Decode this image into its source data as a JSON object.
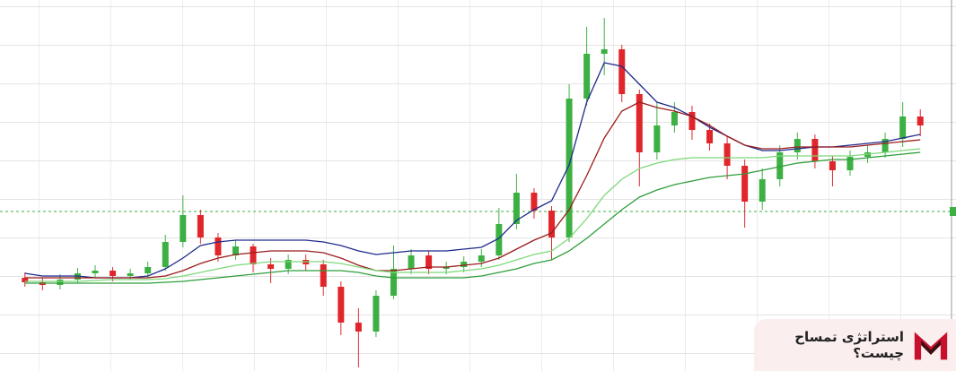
{
  "chart_data": {
    "type": "candlestick",
    "ylim": [
      0,
      414
    ],
    "up_color": "#3cb043",
    "down_color": "#e0262b",
    "open": [
      104,
      99,
      96,
      102,
      109,
      112,
      106,
      109,
      116,
      144,
      174,
      149,
      129,
      139,
      119,
      114,
      124,
      119,
      94,
      54,
      44,
      84,
      114,
      129,
      114,
      116,
      122,
      129,
      164,
      199,
      179,
      149,
      304,
      354,
      359,
      309,
      244,
      274,
      289,
      269,
      254,
      229,
      189,
      214,
      244,
      259,
      234,
      224,
      239,
      244,
      259,
      284
    ],
    "high": [
      110,
      104,
      108,
      115,
      118,
      116,
      114,
      122,
      152,
      196,
      180,
      154,
      146,
      142,
      126,
      130,
      130,
      124,
      100,
      70,
      90,
      140,
      136,
      134,
      122,
      128,
      136,
      182,
      220,
      204,
      184,
      320,
      384,
      394,
      364,
      314,
      300,
      300,
      296,
      276,
      262,
      236,
      226,
      252,
      266,
      264,
      240,
      246,
      252,
      266,
      300,
      292
    ],
    "low": [
      94,
      90,
      91,
      98,
      104,
      100,
      102,
      104,
      112,
      138,
      142,
      122,
      124,
      110,
      98,
      108,
      112,
      84,
      40,
      4,
      38,
      80,
      108,
      108,
      108,
      110,
      116,
      124,
      158,
      170,
      124,
      144,
      296,
      330,
      300,
      206,
      236,
      266,
      258,
      246,
      214,
      160,
      180,
      206,
      236,
      226,
      206,
      218,
      232,
      238,
      250,
      262
    ],
    "close": [
      99,
      96,
      102,
      109,
      112,
      106,
      109,
      116,
      144,
      174,
      149,
      129,
      139,
      119,
      114,
      124,
      119,
      94,
      54,
      44,
      84,
      114,
      129,
      114,
      116,
      122,
      129,
      164,
      199,
      179,
      149,
      304,
      354,
      359,
      309,
      244,
      274,
      289,
      269,
      254,
      229,
      189,
      214,
      244,
      259,
      234,
      224,
      239,
      244,
      259,
      284,
      274
    ],
    "lines": [
      {
        "color": "#1f2a8c",
        "values": [
          109,
          106,
          106,
          106,
          104,
          104,
          104,
          106,
          114,
          126,
          140,
          144,
          146,
          146,
          146,
          146,
          146,
          144,
          140,
          134,
          130,
          132,
          134,
          134,
          134,
          136,
          138,
          148,
          168,
          180,
          190,
          230,
          300,
          344,
          340,
          320,
          300,
          294,
          284,
          272,
          262,
          252,
          246,
          246,
          248,
          250,
          250,
          252,
          254,
          256,
          260,
          264
        ]
      },
      {
        "color": "#9b1c1c",
        "values": [
          104,
          104,
          104,
          104,
          104,
          104,
          104,
          104,
          106,
          112,
          120,
          126,
          130,
          132,
          134,
          134,
          134,
          132,
          126,
          118,
          112,
          112,
          114,
          116,
          116,
          118,
          120,
          126,
          136,
          146,
          154,
          180,
          218,
          260,
          290,
          300,
          294,
          290,
          284,
          274,
          262,
          252,
          248,
          248,
          250,
          250,
          250,
          250,
          252,
          254,
          256,
          258
        ]
      },
      {
        "color": "#7ed87a",
        "values": [
          100,
          100,
          100,
          100,
          101,
          102,
          102,
          102,
          103,
          106,
          110,
          114,
          118,
          120,
          122,
          122,
          122,
          122,
          120,
          116,
          112,
          110,
          110,
          110,
          110,
          112,
          114,
          118,
          124,
          130,
          134,
          148,
          170,
          196,
          214,
          226,
          232,
          236,
          238,
          238,
          238,
          238,
          238,
          240,
          240,
          240,
          240,
          240,
          242,
          244,
          246,
          248
        ]
      },
      {
        "color": "#2e9e3a",
        "values": [
          98,
          98,
          98,
          98,
          98,
          98,
          98,
          98,
          99,
          100,
          102,
          104,
          106,
          108,
          110,
          112,
          112,
          112,
          112,
          110,
          106,
          104,
          104,
          104,
          104,
          104,
          106,
          110,
          114,
          120,
          124,
          134,
          148,
          164,
          180,
          194,
          202,
          208,
          212,
          216,
          218,
          220,
          224,
          228,
          232,
          234,
          236,
          236,
          238,
          240,
          242,
          244
        ]
      }
    ],
    "price_line": 178,
    "price_line_color": "#3cb043"
  },
  "caption": "استراتژی تمساح چیست؟"
}
